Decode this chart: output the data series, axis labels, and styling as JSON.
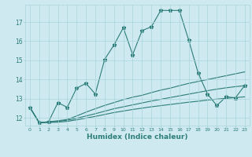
{
  "xlabel": "Humidex (Indice chaleur)",
  "bg_color": "#ceeaf0",
  "grid_color": "#aad4dc",
  "line_color": "#2d7d78",
  "xlim": [
    -0.5,
    23.5
  ],
  "ylim": [
    11.6,
    17.9
  ],
  "xticks": [
    0,
    1,
    2,
    3,
    4,
    5,
    6,
    7,
    8,
    9,
    10,
    11,
    12,
    13,
    14,
    15,
    16,
    17,
    18,
    19,
    20,
    21,
    22,
    23
  ],
  "yticks": [
    12,
    13,
    14,
    15,
    16,
    17
  ],
  "line1_x": [
    0,
    1,
    2,
    3,
    4,
    5,
    6,
    7,
    8,
    9,
    10,
    11,
    12,
    13,
    14,
    15,
    16,
    17,
    18,
    19,
    20,
    21,
    22,
    23
  ],
  "line1_y": [
    12.55,
    11.75,
    11.8,
    12.8,
    12.55,
    13.55,
    13.8,
    13.25,
    15.05,
    15.8,
    16.7,
    15.3,
    16.55,
    16.75,
    17.6,
    17.6,
    17.6,
    16.05,
    14.35,
    13.25,
    12.65,
    13.1,
    13.05,
    13.7
  ],
  "line2_x": [
    0,
    1,
    2,
    3,
    4,
    5,
    6,
    7,
    8,
    9,
    10,
    11,
    12,
    13,
    14,
    15,
    16,
    17,
    18,
    19,
    20,
    21,
    22,
    23
  ],
  "line2_y": [
    12.55,
    11.75,
    11.8,
    11.85,
    11.92,
    12.1,
    12.3,
    12.48,
    12.65,
    12.8,
    12.95,
    13.08,
    13.18,
    13.32,
    13.45,
    13.55,
    13.68,
    13.8,
    13.9,
    14.0,
    14.1,
    14.2,
    14.3,
    14.4
  ],
  "line3_x": [
    0,
    1,
    2,
    3,
    4,
    5,
    6,
    7,
    8,
    9,
    10,
    11,
    12,
    13,
    14,
    15,
    16,
    17,
    18,
    19,
    20,
    21,
    22,
    23
  ],
  "line3_y": [
    12.55,
    11.75,
    11.78,
    11.82,
    11.88,
    11.98,
    12.1,
    12.22,
    12.35,
    12.48,
    12.58,
    12.68,
    12.78,
    12.88,
    12.97,
    13.06,
    13.15,
    13.24,
    13.33,
    13.42,
    13.5,
    13.57,
    13.63,
    13.68
  ],
  "line4_x": [
    0,
    1,
    2,
    3,
    4,
    5,
    6,
    7,
    8,
    9,
    10,
    11,
    12,
    13,
    14,
    15,
    16,
    17,
    18,
    19,
    20,
    21,
    22,
    23
  ],
  "line4_y": [
    12.55,
    11.75,
    11.76,
    11.78,
    11.82,
    11.9,
    11.99,
    12.08,
    12.18,
    12.28,
    12.36,
    12.44,
    12.51,
    12.58,
    12.64,
    12.7,
    12.76,
    12.82,
    12.87,
    12.93,
    12.98,
    13.02,
    13.06,
    13.1
  ]
}
